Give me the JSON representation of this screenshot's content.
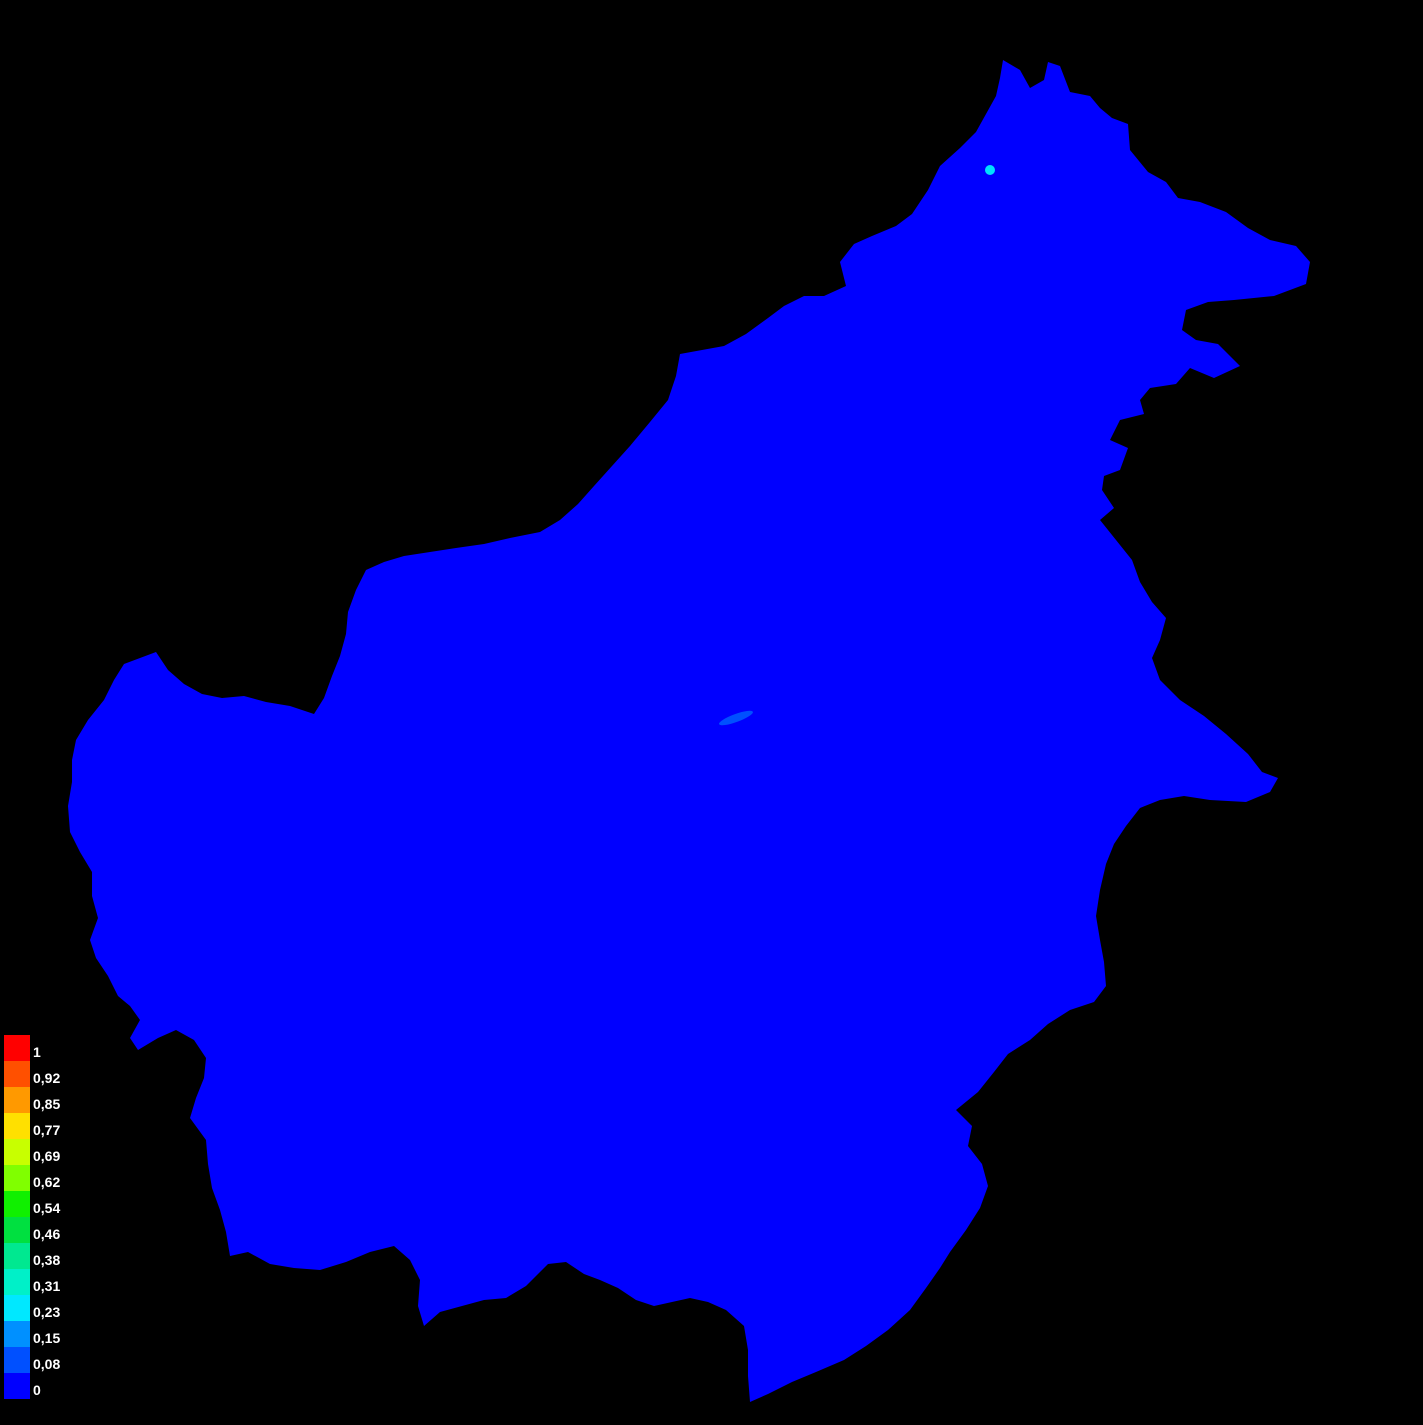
{
  "map": {
    "background_color": "#000000",
    "land_base_color": "#0000ff",
    "hotspot_color": "#00e0ff"
  },
  "legend": {
    "items": [
      {
        "label": "1",
        "color": "#ff0000"
      },
      {
        "label": "0,92",
        "color": "#ff5000"
      },
      {
        "label": "0,85",
        "color": "#ff9900"
      },
      {
        "label": "0,77",
        "color": "#ffe000"
      },
      {
        "label": "0,69",
        "color": "#c8ff00"
      },
      {
        "label": "0,62",
        "color": "#80ff00"
      },
      {
        "label": "0,54",
        "color": "#10f000"
      },
      {
        "label": "0,46",
        "color": "#00e040"
      },
      {
        "label": "0,38",
        "color": "#00e890"
      },
      {
        "label": "0,31",
        "color": "#00f0c8"
      },
      {
        "label": "0,23",
        "color": "#00e8ff"
      },
      {
        "label": "0,15",
        "color": "#0090ff"
      },
      {
        "label": "0,08",
        "color": "#0050ff"
      },
      {
        "label": "0",
        "color": "#0000ff"
      }
    ]
  }
}
